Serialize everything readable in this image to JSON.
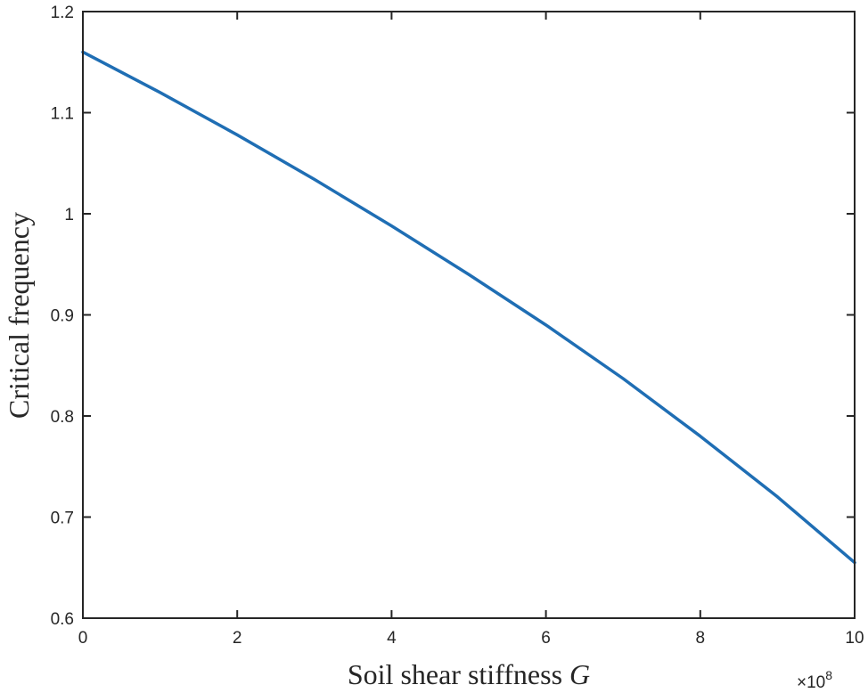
{
  "chart_data": {
    "type": "line",
    "xlabel": "Soil shear stiffness",
    "xlabel_var": "G",
    "ylabel": "Critical frequency",
    "x_exponent_base": "×10",
    "x_exponent_power": "8",
    "xlim": [
      0,
      10
    ],
    "ylim": [
      0.6,
      1.2
    ],
    "xticks": [
      "0",
      "2",
      "4",
      "6",
      "8",
      "10"
    ],
    "yticks": [
      "0.6",
      "0.7",
      "0.8",
      "0.9",
      "1",
      "1.1",
      "1.2"
    ],
    "grid": false,
    "series": [
      {
        "color": "#1f6eb4",
        "x": [
          0,
          1,
          2,
          3,
          4,
          5,
          6,
          7,
          8,
          9,
          10
        ],
        "y": [
          1.16,
          1.12,
          1.078,
          1.034,
          0.988,
          0.94,
          0.89,
          0.837,
          0.78,
          0.72,
          0.655
        ]
      }
    ]
  }
}
